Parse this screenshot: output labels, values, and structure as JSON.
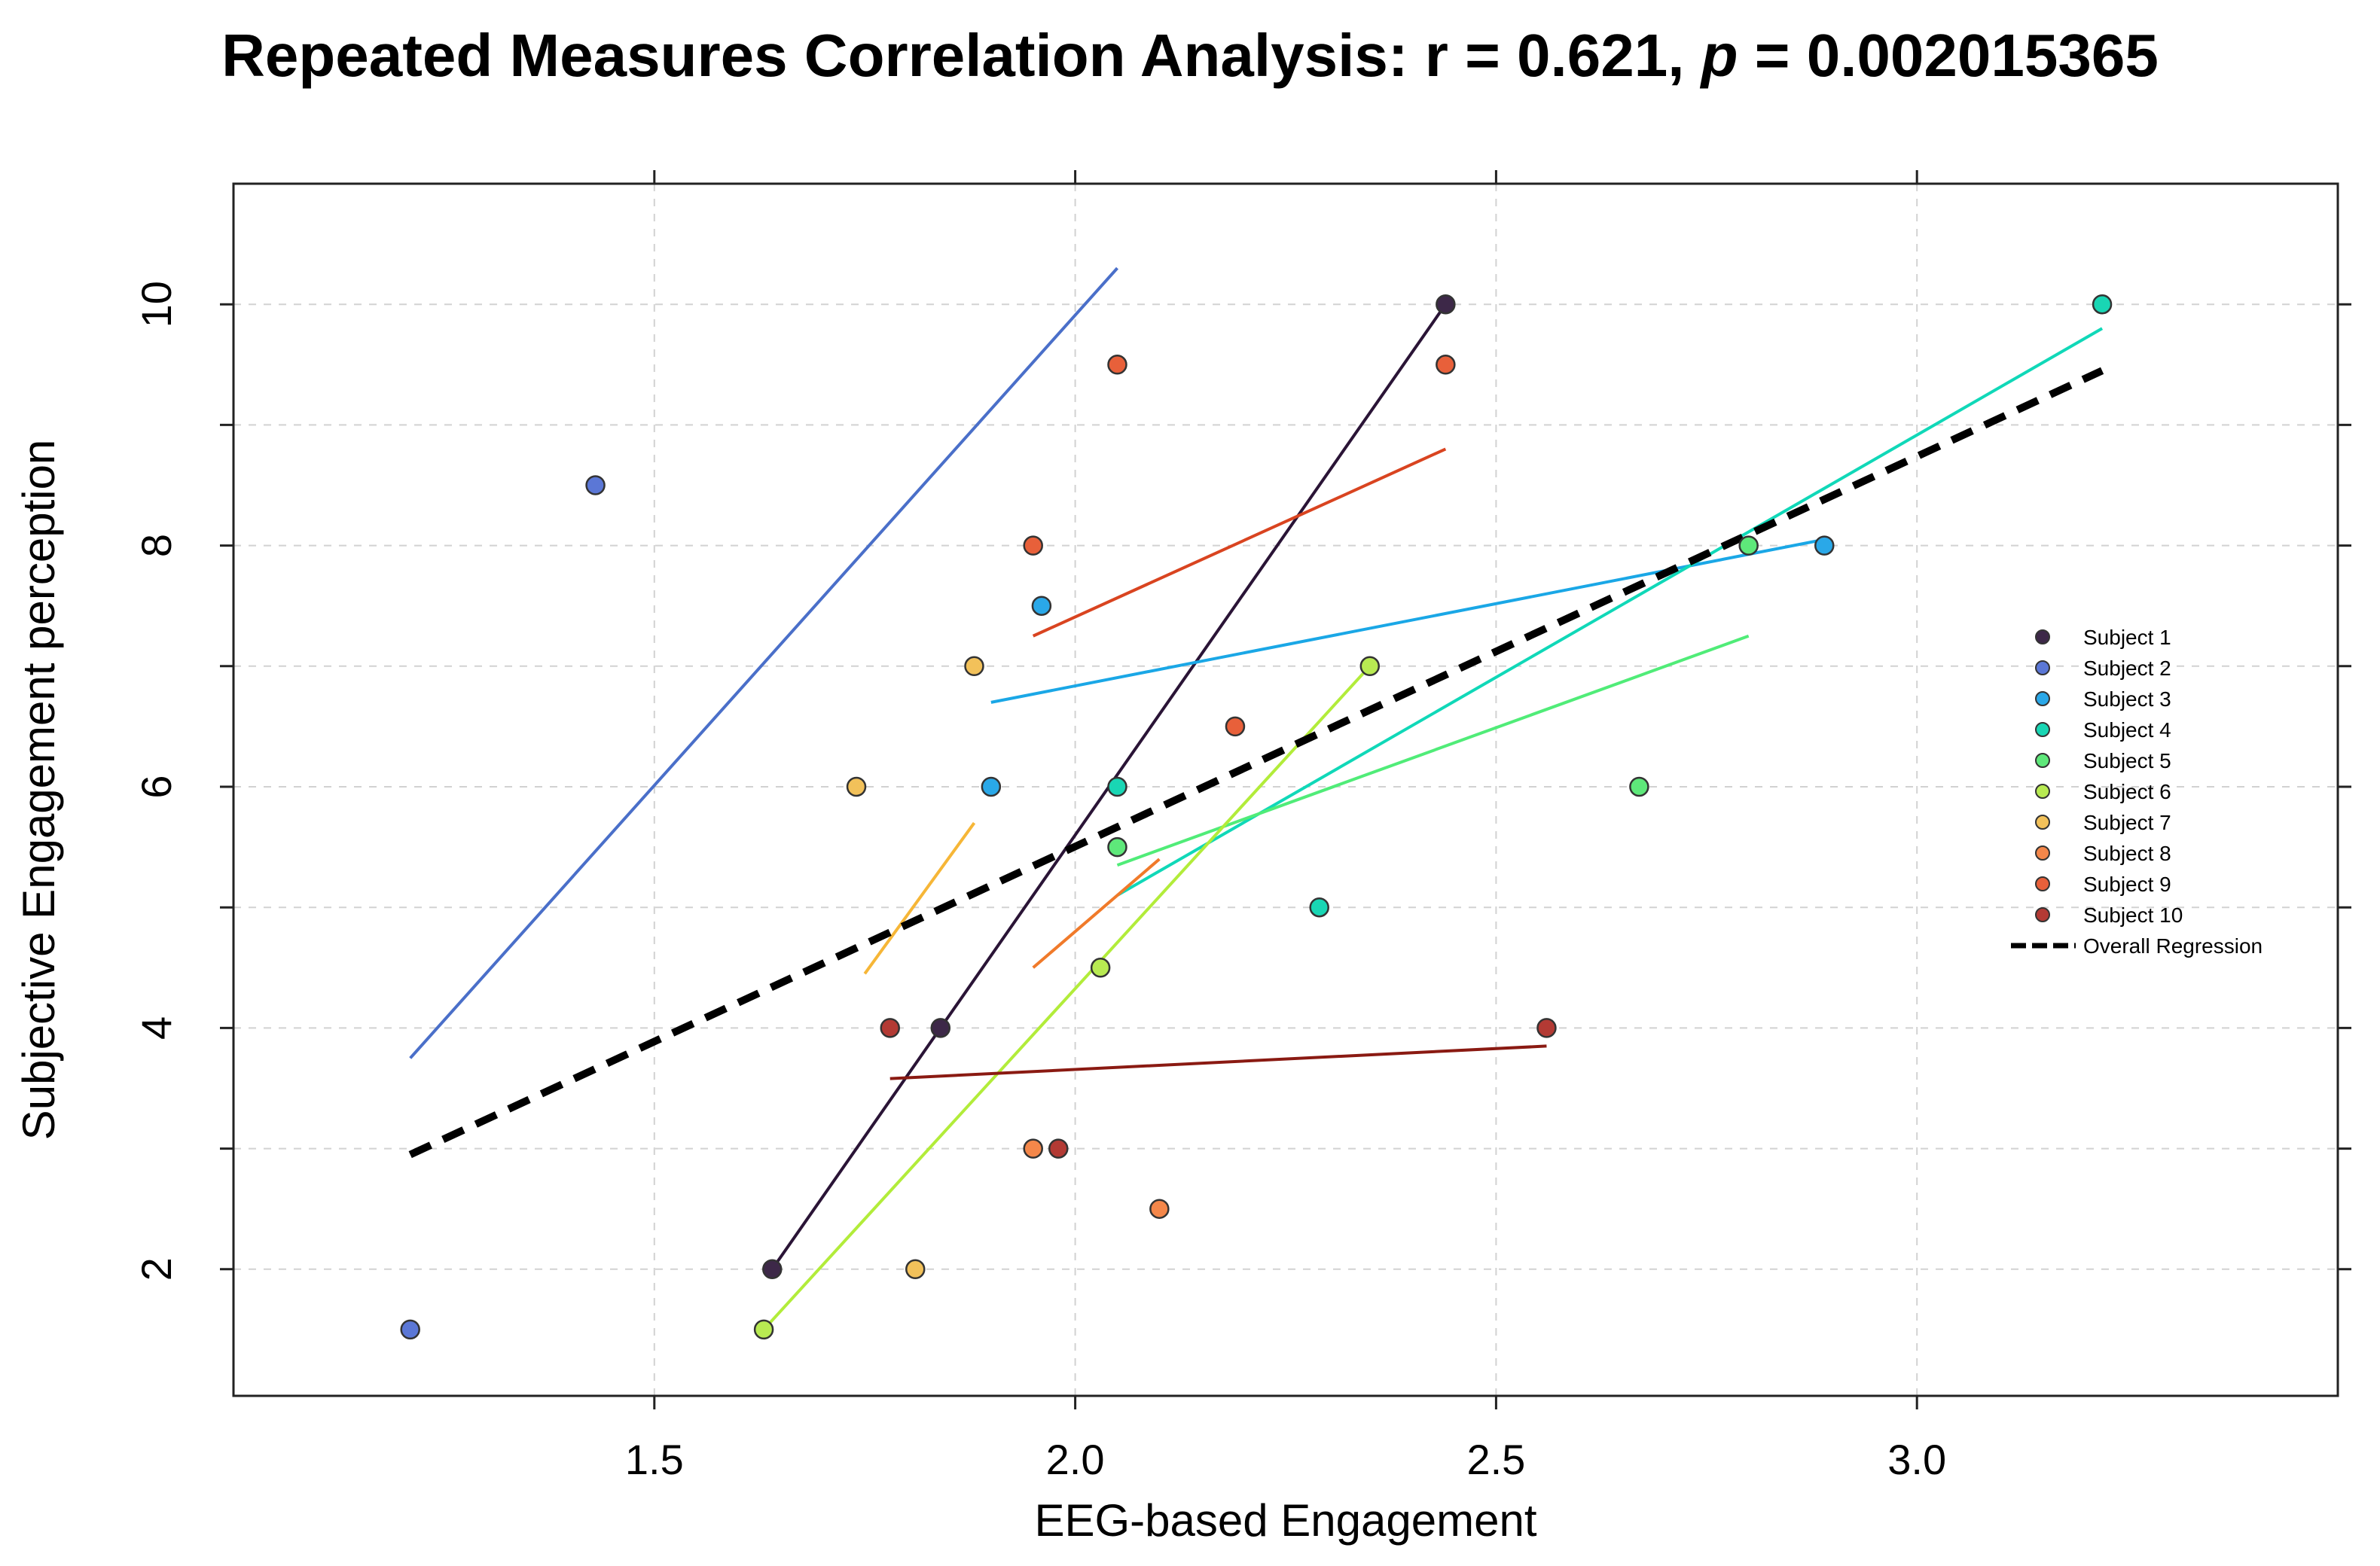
{
  "chart_data": {
    "type": "scatter",
    "title": {
      "prefix": "Repeated Measures Correlation Analysis: r = 0.621, ",
      "p_symbol": "p",
      "suffix": " = 0.002015365"
    },
    "xlabel": "EEG-based Engagement",
    "ylabel": "Subjective Engagement perception",
    "xlim": [
      1.0,
      3.5
    ],
    "ylim": [
      0.95,
      11.0
    ],
    "x_ticks": [
      "1.5",
      "2.0",
      "2.5",
      "3.0"
    ],
    "y_ticks": [
      "2",
      "4",
      "6",
      "8",
      "10"
    ],
    "grid": true,
    "legend_position": "right",
    "series": [
      {
        "name": "Subject 1",
        "color": "#3d2848",
        "line_color": "#2a1436",
        "points": [
          [
            1.64,
            2.0
          ],
          [
            1.84,
            4.0
          ],
          [
            2.44,
            10.0
          ]
        ],
        "fit": [
          [
            1.64,
            2.0
          ],
          [
            2.44,
            10.0
          ]
        ]
      },
      {
        "name": "Subject 2",
        "color": "#5b77d6",
        "line_color": "#4a6fc9",
        "points": [
          [
            1.21,
            1.5
          ],
          [
            1.43,
            8.5
          ]
        ],
        "fit": [
          [
            1.21,
            3.75
          ],
          [
            2.05,
            10.3
          ]
        ]
      },
      {
        "name": "Subject 3",
        "color": "#2aa8e8",
        "line_color": "#1aa7e6",
        "points": [
          [
            1.9,
            6.0
          ],
          [
            1.96,
            7.5
          ],
          [
            2.89,
            8.0
          ]
        ],
        "fit": [
          [
            1.9,
            6.7
          ],
          [
            2.89,
            8.05
          ]
        ]
      },
      {
        "name": "Subject 4",
        "color": "#19d6b4",
        "line_color": "#10d8b8",
        "points": [
          [
            2.05,
            6.0
          ],
          [
            2.29,
            5.0
          ],
          [
            3.22,
            10.0
          ]
        ],
        "fit": [
          [
            2.05,
            5.1
          ],
          [
            3.22,
            9.8
          ]
        ]
      },
      {
        "name": "Subject 5",
        "color": "#5ee87a",
        "line_color": "#50ec78",
        "points": [
          [
            2.05,
            5.5
          ],
          [
            2.67,
            6.0
          ],
          [
            2.8,
            8.0
          ]
        ],
        "fit": [
          [
            2.05,
            5.35
          ],
          [
            2.8,
            7.25
          ]
        ]
      },
      {
        "name": "Subject 6",
        "color": "#b8ea52",
        "line_color": "#b2ec3a",
        "points": [
          [
            1.63,
            1.5
          ],
          [
            2.03,
            4.5
          ],
          [
            2.35,
            7.0
          ]
        ],
        "fit": [
          [
            1.63,
            1.5
          ],
          [
            2.35,
            7.0
          ]
        ]
      },
      {
        "name": "Subject 7",
        "color": "#f2c15a",
        "line_color": "#f6b637",
        "points": [
          [
            1.74,
            6.0
          ],
          [
            1.81,
            2.0
          ],
          [
            1.88,
            7.0
          ]
        ],
        "fit": [
          [
            1.75,
            4.45
          ],
          [
            1.88,
            5.7
          ]
        ]
      },
      {
        "name": "Subject 8",
        "color": "#f4874a",
        "line_color": "#f07a2a",
        "points": [
          [
            1.95,
            3.0
          ],
          [
            2.1,
            2.5
          ]
        ],
        "fit": [
          [
            1.95,
            4.5
          ],
          [
            2.1,
            5.4
          ]
        ]
      },
      {
        "name": "Subject 9",
        "color": "#e8603a",
        "line_color": "#d94420",
        "points": [
          [
            1.95,
            8.0
          ],
          [
            2.05,
            9.5
          ],
          [
            2.19,
            6.5
          ],
          [
            2.44,
            9.5
          ]
        ],
        "fit": [
          [
            1.95,
            7.25
          ],
          [
            2.44,
            8.8
          ]
        ]
      },
      {
        "name": "Subject 10",
        "color": "#b33a34",
        "line_color": "#8a1a12",
        "points": [
          [
            1.78,
            4.0
          ],
          [
            1.98,
            3.0
          ],
          [
            2.56,
            4.0
          ]
        ],
        "fit": [
          [
            1.78,
            3.58
          ],
          [
            2.56,
            3.85
          ]
        ]
      }
    ],
    "overall_regression": {
      "name": "Overall Regression",
      "color": "#000000",
      "line": [
        [
          1.21,
          2.95
        ],
        [
          3.22,
          9.45
        ]
      ]
    }
  }
}
